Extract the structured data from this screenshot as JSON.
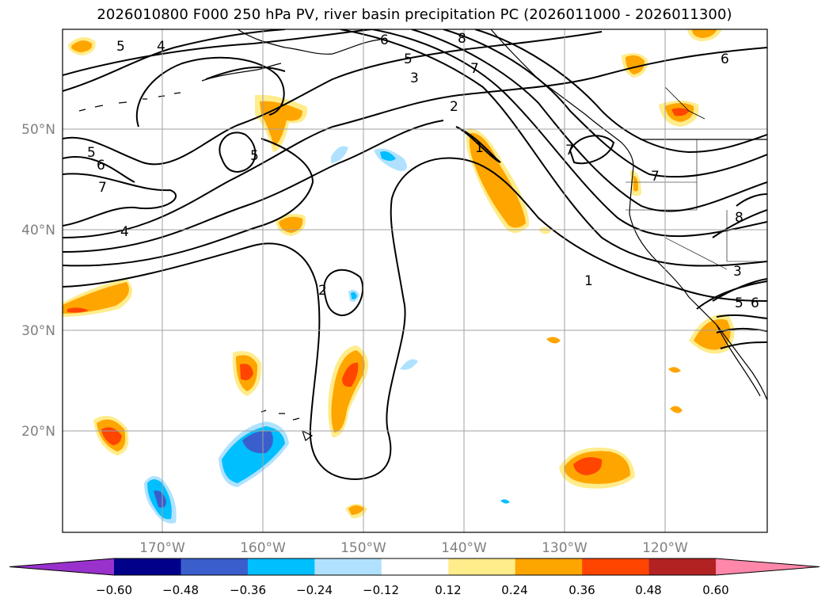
{
  "title": "2026010800 F000 250 hPa PV, river basin precipitation PC (2026011000 - 2026011300)",
  "lat_labels": [
    "50°N",
    "40°N",
    "30°N",
    "20°N"
  ],
  "lon_labels": [
    "170°W",
    "160°W",
    "150°W",
    "140°W",
    "130°W",
    "120°W"
  ],
  "colorbar": {
    "ticks": [
      "−0.60",
      "−0.48",
      "−0.36",
      "−0.24",
      "−0.12",
      "0.12",
      "0.24",
      "0.36",
      "0.48",
      "0.60"
    ],
    "colors": [
      "#9932cc",
      "#00008b",
      "#3a5fcd",
      "#00bfff",
      "#b0e2ff",
      "#ffffff",
      "#ffec8b",
      "#ffa500",
      "#ff4500",
      "#b22222",
      "#ff88aa"
    ]
  },
  "contour_labels": [
    "5",
    "4",
    "6",
    "8",
    "5",
    "3",
    "7",
    "2",
    "6",
    "5",
    "6",
    "7",
    "5",
    "4",
    "1",
    "7",
    "7",
    "2",
    "1",
    "3",
    "5",
    "6",
    "8"
  ],
  "colors": {
    "pv_line": "#000000",
    "grid": "#a0a0a0",
    "orange": "#ffa500",
    "red": "#ff4500",
    "yellow": "#ffec8b",
    "cyan": "#00bfff",
    "lightblue": "#b0e2ff",
    "blue": "#3a5fcd"
  }
}
